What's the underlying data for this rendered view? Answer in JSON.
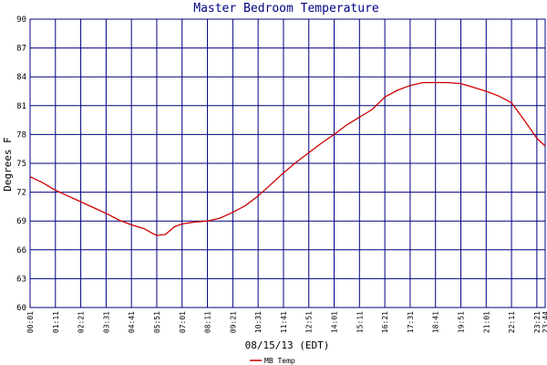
{
  "chart_data": {
    "type": "line",
    "title": "Master Bedroom Temperature",
    "xlabel": "08/15/13 (EDT)",
    "ylabel": "Degrees F",
    "ylim": [
      60,
      90
    ],
    "yticks": [
      60,
      63,
      66,
      69,
      72,
      75,
      78,
      81,
      84,
      87,
      90
    ],
    "xlim": [
      "00:01",
      "23:44"
    ],
    "xticks": [
      "00:01",
      "01:11",
      "02:21",
      "03:31",
      "04:41",
      "05:51",
      "07:01",
      "08:11",
      "09:21",
      "10:31",
      "11:41",
      "12:51",
      "14:01",
      "15:11",
      "16:21",
      "17:31",
      "18:41",
      "19:51",
      "21:01",
      "22:11",
      "23:21",
      "23:44"
    ],
    "grid": true,
    "legend": "bottom-center",
    "colors": {
      "grid": "#000080",
      "line": "#cc0000",
      "title": "#000080"
    },
    "series": [
      {
        "name": "MB Temp",
        "x": [
          "00:01",
          "00:35",
          "01:11",
          "01:46",
          "02:21",
          "02:56",
          "03:31",
          "04:06",
          "04:41",
          "05:16",
          "05:40",
          "05:51",
          "06:15",
          "06:40",
          "07:01",
          "07:36",
          "08:11",
          "08:46",
          "09:21",
          "09:56",
          "10:31",
          "11:06",
          "11:41",
          "12:16",
          "12:51",
          "13:26",
          "14:01",
          "14:36",
          "15:11",
          "15:46",
          "16:21",
          "16:56",
          "17:31",
          "18:06",
          "18:41",
          "19:16",
          "19:51",
          "20:26",
          "21:01",
          "21:36",
          "22:11",
          "22:46",
          "23:21",
          "23:44"
        ],
        "values": [
          73.6,
          73.0,
          72.2,
          71.6,
          71.0,
          70.4,
          69.8,
          69.1,
          68.6,
          68.2,
          67.7,
          67.5,
          67.6,
          68.4,
          68.7,
          68.9,
          69.0,
          69.3,
          69.9,
          70.6,
          71.6,
          72.8,
          74.0,
          75.1,
          76.1,
          77.1,
          78.0,
          79.0,
          79.8,
          80.6,
          81.9,
          82.6,
          83.1,
          83.4,
          83.4,
          83.4,
          83.3,
          82.9,
          82.5,
          82.0,
          81.3,
          79.5,
          77.6,
          76.8
        ]
      }
    ]
  }
}
